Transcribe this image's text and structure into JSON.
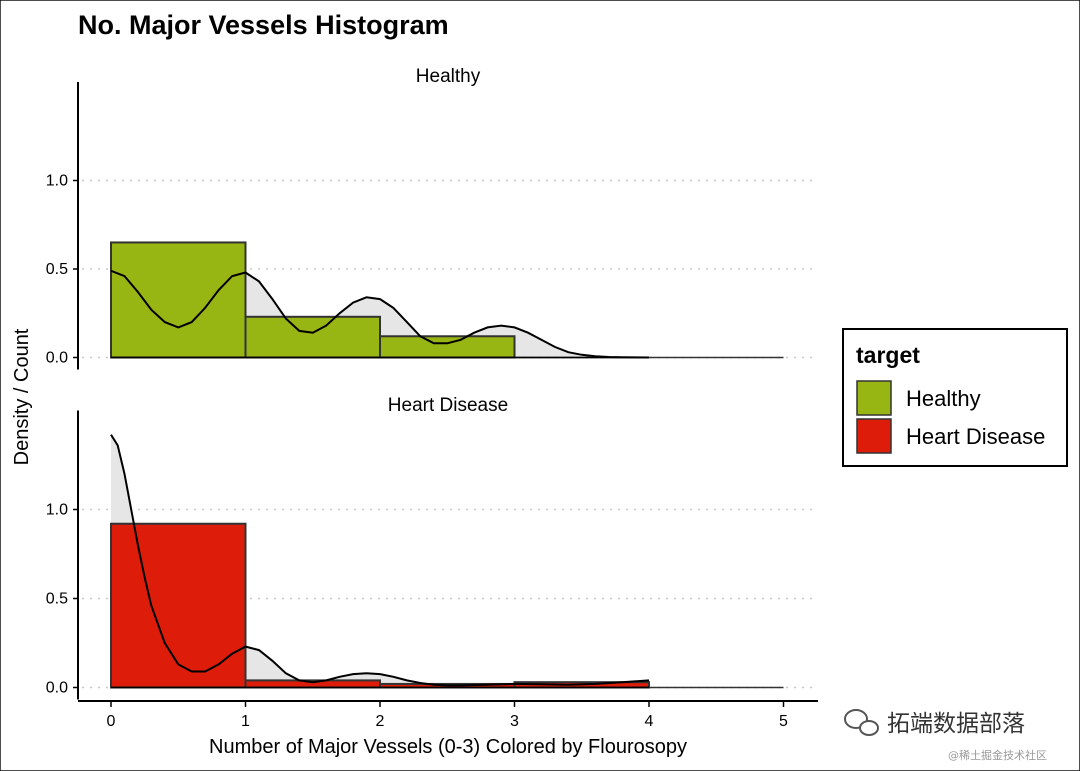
{
  "chart_data": {
    "type": "bar",
    "title": "No. Major Vessels Histogram",
    "xlabel": "Number of Major Vessels (0-3) Colored by Flourosopy",
    "ylabel": "Density / Count",
    "xlim": [
      -0.25,
      5.25
    ],
    "ylim": [
      0,
      1.5
    ],
    "x_ticks": [
      "0",
      "1",
      "2",
      "3",
      "4",
      "5"
    ],
    "y_ticks": [
      "0.0",
      "0.5",
      "1.0"
    ],
    "grid": "horizontal dotted",
    "legend_position": "right",
    "legend": {
      "title": "target",
      "items": [
        {
          "label": "Healthy",
          "color": "#97B513"
        },
        {
          "label": "Heart Disease",
          "color": "#DD1D0A"
        }
      ]
    },
    "panels": [
      {
        "strip": "Healthy",
        "fill": "#97B513",
        "bins": [
          {
            "x0": 0,
            "x1": 1,
            "value": 0.65
          },
          {
            "x0": 1,
            "x1": 2,
            "value": 0.23
          },
          {
            "x0": 2,
            "x1": 3,
            "value": 0.12
          }
        ],
        "density": {
          "x": [
            0,
            0.1,
            0.2,
            0.3,
            0.4,
            0.5,
            0.6,
            0.7,
            0.8,
            0.9,
            1.0,
            1.1,
            1.2,
            1.3,
            1.4,
            1.5,
            1.6,
            1.7,
            1.8,
            1.9,
            2.0,
            2.1,
            2.2,
            2.3,
            2.4,
            2.5,
            2.6,
            2.7,
            2.8,
            2.9,
            3.0,
            3.1,
            3.2,
            3.3,
            3.4,
            3.5,
            3.6,
            3.7,
            3.8,
            3.9,
            4.0
          ],
          "y": [
            0.49,
            0.46,
            0.37,
            0.27,
            0.2,
            0.17,
            0.2,
            0.28,
            0.38,
            0.46,
            0.48,
            0.43,
            0.33,
            0.22,
            0.15,
            0.14,
            0.18,
            0.25,
            0.31,
            0.34,
            0.33,
            0.28,
            0.2,
            0.12,
            0.08,
            0.08,
            0.1,
            0.14,
            0.17,
            0.18,
            0.17,
            0.14,
            0.1,
            0.06,
            0.03,
            0.015,
            0.007,
            0.003,
            0.001,
            0.0005,
            0
          ]
        }
      },
      {
        "strip": "Heart Disease",
        "fill": "#DD1D0A",
        "bins": [
          {
            "x0": 0,
            "x1": 1,
            "value": 0.92
          },
          {
            "x0": 1,
            "x1": 2,
            "value": 0.04
          },
          {
            "x0": 2,
            "x1": 3,
            "value": 0.02
          },
          {
            "x0": 3,
            "x1": 4,
            "value": 0.03
          }
        ],
        "density": {
          "x": [
            0,
            0.05,
            0.1,
            0.15,
            0.2,
            0.25,
            0.3,
            0.4,
            0.5,
            0.6,
            0.7,
            0.8,
            0.9,
            1.0,
            1.1,
            1.2,
            1.3,
            1.4,
            1.5,
            1.6,
            1.7,
            1.8,
            1.9,
            2.0,
            2.1,
            2.2,
            2.3,
            2.4,
            2.5,
            2.6,
            2.8,
            3.0,
            3.2,
            3.4,
            3.6,
            3.8,
            4.0
          ],
          "y": [
            1.42,
            1.36,
            1.2,
            1.0,
            0.8,
            0.62,
            0.46,
            0.25,
            0.13,
            0.09,
            0.09,
            0.13,
            0.19,
            0.23,
            0.21,
            0.15,
            0.08,
            0.04,
            0.03,
            0.04,
            0.06,
            0.075,
            0.08,
            0.075,
            0.06,
            0.04,
            0.025,
            0.015,
            0.012,
            0.012,
            0.015,
            0.02,
            0.018,
            0.015,
            0.02,
            0.03,
            0.04
          ]
        }
      }
    ]
  },
  "watermark": {
    "main": "拓端数据部落",
    "sub": "@稀土掘金技术社区"
  }
}
